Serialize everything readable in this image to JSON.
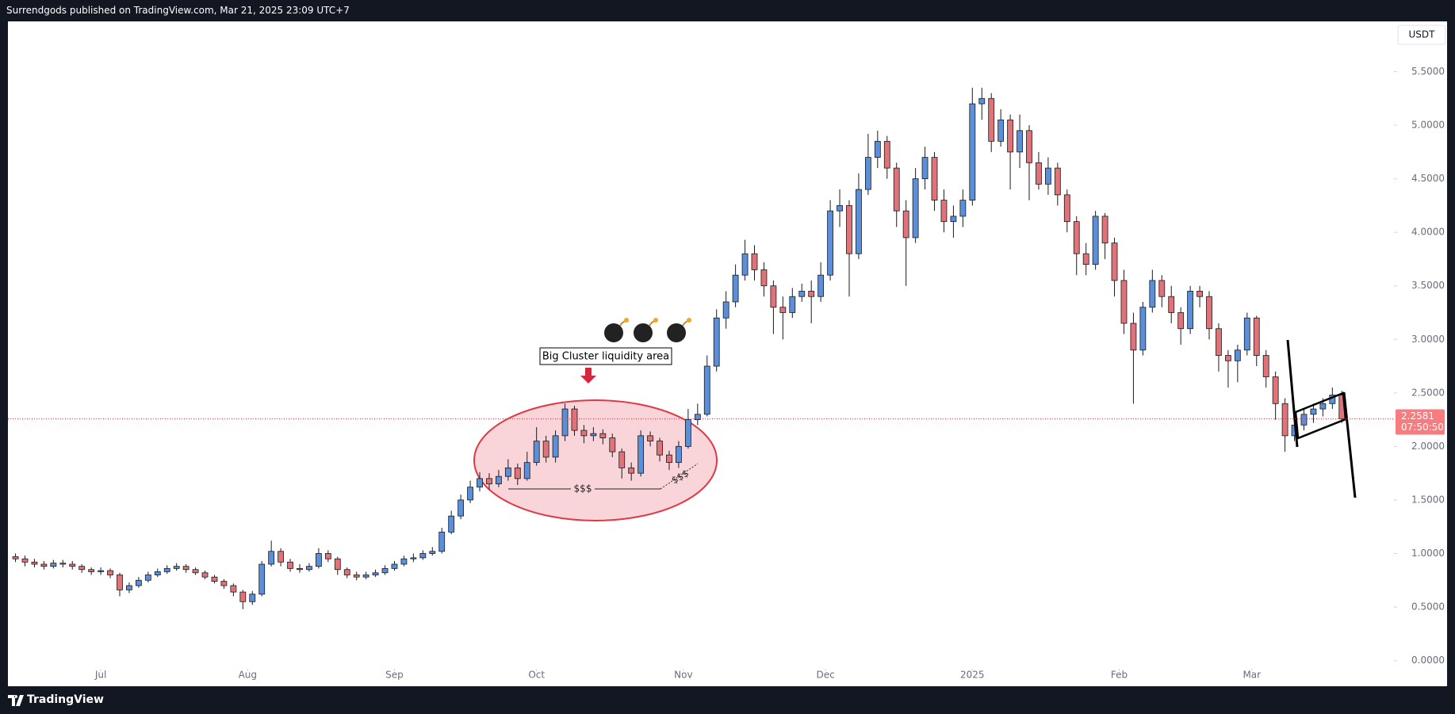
{
  "header": {
    "text": "Surrendgods published on TradingView.com, Mar 21, 2025 23:09 UTC+7"
  },
  "footer": {
    "brand": "TradingView"
  },
  "chart_data": {
    "type": "candlestick",
    "currency": "USDT",
    "up_color": "#5b8fd9",
    "down_color": "#e0727a",
    "outline_color": "#1a1a1a",
    "grid": false,
    "ylim": [
      -0.24,
      5.97
    ],
    "yticks": [
      {
        "value": 0,
        "label": "0.0000"
      },
      {
        "value": 0.5,
        "label": "0.5000"
      },
      {
        "value": 1,
        "label": "1.0000"
      },
      {
        "value": 1.5,
        "label": "1.5000"
      },
      {
        "value": 2,
        "label": "2.0000"
      },
      {
        "value": 2.5,
        "label": "2.5000"
      },
      {
        "value": 3,
        "label": "3.0000"
      },
      {
        "value": 3.5,
        "label": "3.5000"
      },
      {
        "value": 4,
        "label": "4.0000"
      },
      {
        "value": 4.5,
        "label": "4.5000"
      },
      {
        "value": 5,
        "label": "5.0000"
      },
      {
        "value": 5.5,
        "label": "5.5000"
      }
    ],
    "xlim": [
      -0.8,
      145.5
    ],
    "xticks": [
      {
        "value": 9,
        "label": "Jul"
      },
      {
        "value": 24.5,
        "label": "Aug"
      },
      {
        "value": 40,
        "label": "Sep"
      },
      {
        "value": 55,
        "label": "Oct"
      },
      {
        "value": 70.5,
        "label": "Nov"
      },
      {
        "value": 85.5,
        "label": "Dec"
      },
      {
        "value": 101,
        "label": "2025"
      },
      {
        "value": 116.5,
        "label": "Feb"
      },
      {
        "value": 130.5,
        "label": "Mar"
      }
    ],
    "last_price": 2.2581,
    "countdown": "07:50:50",
    "annotations": [
      "Big Cluster liquidity area",
      "$$$",
      "$$$"
    ],
    "candles": [
      [
        0.97,
        1.0,
        0.92,
        0.95
      ],
      [
        0.95,
        0.98,
        0.88,
        0.92
      ],
      [
        0.92,
        0.95,
        0.87,
        0.9
      ],
      [
        0.9,
        0.93,
        0.85,
        0.88
      ],
      [
        0.88,
        0.94,
        0.86,
        0.91
      ],
      [
        0.91,
        0.94,
        0.87,
        0.9
      ],
      [
        0.9,
        0.93,
        0.85,
        0.88
      ],
      [
        0.88,
        0.9,
        0.82,
        0.85
      ],
      [
        0.85,
        0.87,
        0.8,
        0.83
      ],
      [
        0.83,
        0.87,
        0.8,
        0.84
      ],
      [
        0.84,
        0.86,
        0.77,
        0.8
      ],
      [
        0.8,
        0.82,
        0.6,
        0.66
      ],
      [
        0.66,
        0.73,
        0.63,
        0.7
      ],
      [
        0.7,
        0.78,
        0.68,
        0.75
      ],
      [
        0.75,
        0.83,
        0.73,
        0.8
      ],
      [
        0.8,
        0.86,
        0.78,
        0.83
      ],
      [
        0.83,
        0.89,
        0.81,
        0.86
      ],
      [
        0.86,
        0.91,
        0.84,
        0.88
      ],
      [
        0.88,
        0.9,
        0.82,
        0.85
      ],
      [
        0.85,
        0.87,
        0.8,
        0.82
      ],
      [
        0.82,
        0.84,
        0.76,
        0.78
      ],
      [
        0.78,
        0.8,
        0.72,
        0.74
      ],
      [
        0.74,
        0.76,
        0.67,
        0.7
      ],
      [
        0.7,
        0.72,
        0.6,
        0.64
      ],
      [
        0.64,
        0.66,
        0.48,
        0.55
      ],
      [
        0.55,
        0.65,
        0.52,
        0.62
      ],
      [
        0.62,
        0.93,
        0.6,
        0.9
      ],
      [
        0.9,
        1.12,
        0.88,
        1.02
      ],
      [
        1.02,
        1.05,
        0.88,
        0.92
      ],
      [
        0.92,
        0.95,
        0.83,
        0.86
      ],
      [
        0.86,
        0.9,
        0.82,
        0.85
      ],
      [
        0.85,
        0.91,
        0.83,
        0.88
      ],
      [
        0.88,
        1.05,
        0.86,
        1.0
      ],
      [
        1.0,
        1.03,
        0.92,
        0.95
      ],
      [
        0.95,
        0.97,
        0.8,
        0.85
      ],
      [
        0.85,
        0.87,
        0.77,
        0.8
      ],
      [
        0.8,
        0.83,
        0.75,
        0.78
      ],
      [
        0.78,
        0.83,
        0.76,
        0.8
      ],
      [
        0.8,
        0.85,
        0.78,
        0.82
      ],
      [
        0.82,
        0.89,
        0.8,
        0.86
      ],
      [
        0.86,
        0.93,
        0.84,
        0.9
      ],
      [
        0.9,
        0.98,
        0.88,
        0.95
      ],
      [
        0.95,
        1.0,
        0.92,
        0.96
      ],
      [
        0.96,
        1.03,
        0.94,
        1.0
      ],
      [
        1.0,
        1.06,
        0.98,
        1.02
      ],
      [
        1.02,
        1.24,
        1.0,
        1.2
      ],
      [
        1.2,
        1.4,
        1.18,
        1.35
      ],
      [
        1.35,
        1.55,
        1.32,
        1.5
      ],
      [
        1.5,
        1.68,
        1.47,
        1.62
      ],
      [
        1.62,
        1.76,
        1.58,
        1.7
      ],
      [
        1.7,
        1.75,
        1.6,
        1.65
      ],
      [
        1.65,
        1.78,
        1.62,
        1.72
      ],
      [
        1.72,
        1.88,
        1.68,
        1.8
      ],
      [
        1.8,
        1.84,
        1.64,
        1.7
      ],
      [
        1.7,
        1.95,
        1.68,
        1.85
      ],
      [
        1.85,
        2.18,
        1.82,
        2.05
      ],
      [
        2.05,
        2.1,
        1.85,
        1.9
      ],
      [
        1.9,
        2.15,
        1.85,
        2.1
      ],
      [
        2.1,
        2.4,
        2.05,
        2.35
      ],
      [
        2.35,
        2.38,
        2.1,
        2.15
      ],
      [
        2.15,
        2.2,
        2.03,
        2.1
      ],
      [
        2.1,
        2.18,
        2.05,
        2.12
      ],
      [
        2.12,
        2.16,
        2.02,
        2.08
      ],
      [
        2.08,
        2.12,
        1.9,
        1.95
      ],
      [
        1.95,
        1.98,
        1.7,
        1.8
      ],
      [
        1.8,
        1.85,
        1.68,
        1.75
      ],
      [
        1.75,
        2.15,
        1.72,
        2.1
      ],
      [
        2.1,
        2.14,
        2.0,
        2.05
      ],
      [
        2.05,
        2.08,
        1.86,
        1.92
      ],
      [
        1.92,
        1.96,
        1.78,
        1.85
      ],
      [
        1.85,
        2.05,
        1.8,
        2.0
      ],
      [
        2.0,
        2.35,
        1.98,
        2.25
      ],
      [
        2.25,
        2.4,
        2.2,
        2.3
      ],
      [
        2.3,
        2.85,
        2.28,
        2.75
      ],
      [
        2.75,
        3.28,
        2.7,
        3.2
      ],
      [
        3.2,
        3.45,
        3.1,
        3.35
      ],
      [
        3.35,
        3.7,
        3.3,
        3.6
      ],
      [
        3.6,
        3.93,
        3.55,
        3.8
      ],
      [
        3.8,
        3.88,
        3.55,
        3.65
      ],
      [
        3.65,
        3.72,
        3.4,
        3.5
      ],
      [
        3.5,
        3.55,
        3.05,
        3.3
      ],
      [
        3.3,
        3.4,
        3.0,
        3.25
      ],
      [
        3.25,
        3.48,
        3.2,
        3.4
      ],
      [
        3.4,
        3.52,
        3.35,
        3.45
      ],
      [
        3.45,
        3.55,
        3.15,
        3.4
      ],
      [
        3.4,
        3.72,
        3.35,
        3.6
      ],
      [
        3.6,
        4.3,
        3.55,
        4.2
      ],
      [
        4.2,
        4.4,
        4.05,
        4.25
      ],
      [
        4.25,
        4.3,
        3.4,
        3.8
      ],
      [
        3.8,
        4.55,
        3.75,
        4.4
      ],
      [
        4.4,
        4.92,
        4.35,
        4.7
      ],
      [
        4.7,
        4.95,
        4.6,
        4.85
      ],
      [
        4.85,
        4.9,
        4.5,
        4.6
      ],
      [
        4.6,
        4.65,
        4.05,
        4.2
      ],
      [
        4.2,
        4.3,
        3.5,
        3.95
      ],
      [
        3.95,
        4.6,
        3.9,
        4.5
      ],
      [
        4.5,
        4.8,
        4.4,
        4.7
      ],
      [
        4.7,
        4.75,
        4.2,
        4.3
      ],
      [
        4.3,
        4.4,
        4.0,
        4.1
      ],
      [
        4.1,
        4.25,
        3.95,
        4.15
      ],
      [
        4.15,
        4.4,
        4.05,
        4.3
      ],
      [
        4.3,
        5.35,
        4.25,
        5.2
      ],
      [
        5.2,
        5.35,
        5.05,
        5.25
      ],
      [
        5.25,
        5.3,
        4.75,
        4.85
      ],
      [
        4.85,
        5.15,
        4.8,
        5.05
      ],
      [
        5.05,
        5.1,
        4.4,
        4.75
      ],
      [
        4.75,
        5.1,
        4.6,
        4.95
      ],
      [
        4.95,
        5.0,
        4.3,
        4.65
      ],
      [
        4.65,
        4.75,
        4.4,
        4.45
      ],
      [
        4.45,
        4.7,
        4.35,
        4.6
      ],
      [
        4.6,
        4.65,
        4.25,
        4.35
      ],
      [
        4.35,
        4.4,
        4.0,
        4.1
      ],
      [
        4.1,
        4.15,
        3.6,
        3.8
      ],
      [
        3.8,
        3.9,
        3.6,
        3.7
      ],
      [
        3.7,
        4.2,
        3.65,
        4.15
      ],
      [
        4.15,
        4.18,
        3.75,
        3.9
      ],
      [
        3.9,
        3.95,
        3.4,
        3.55
      ],
      [
        3.55,
        3.65,
        3.05,
        3.15
      ],
      [
        3.15,
        3.25,
        2.4,
        2.9
      ],
      [
        2.9,
        3.35,
        2.85,
        3.3
      ],
      [
        3.3,
        3.65,
        3.25,
        3.55
      ],
      [
        3.55,
        3.6,
        3.3,
        3.4
      ],
      [
        3.4,
        3.5,
        3.15,
        3.25
      ],
      [
        3.25,
        3.3,
        2.95,
        3.1
      ],
      [
        3.1,
        3.5,
        3.05,
        3.45
      ],
      [
        3.45,
        3.5,
        3.3,
        3.4
      ],
      [
        3.4,
        3.45,
        3.0,
        3.1
      ],
      [
        3.1,
        3.15,
        2.7,
        2.85
      ],
      [
        2.85,
        2.9,
        2.55,
        2.8
      ],
      [
        2.8,
        2.95,
        2.6,
        2.9
      ],
      [
        2.9,
        3.25,
        2.85,
        3.2
      ],
      [
        3.2,
        3.22,
        2.75,
        2.85
      ],
      [
        2.85,
        2.9,
        2.55,
        2.65
      ],
      [
        2.65,
        2.7,
        2.25,
        2.4
      ],
      [
        2.4,
        2.45,
        1.95,
        2.1
      ],
      [
        2.1,
        2.28,
        2.05,
        2.2
      ],
      [
        2.2,
        2.36,
        2.15,
        2.3
      ],
      [
        2.3,
        2.4,
        2.22,
        2.35
      ],
      [
        2.35,
        2.45,
        2.28,
        2.4
      ],
      [
        2.4,
        2.55,
        2.35,
        2.48
      ],
      [
        2.48,
        2.52,
        2.22,
        2.2581
      ]
    ]
  }
}
